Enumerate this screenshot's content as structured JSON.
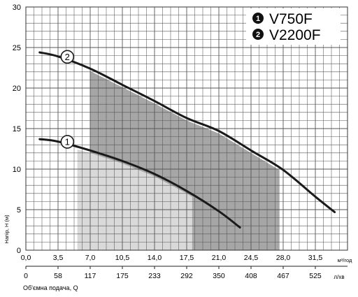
{
  "chart_data": {
    "type": "line",
    "title": "",
    "xlabel": "Об'ємна подача, Q",
    "xlabel_units_top": "м³/год",
    "xlabel_units_bottom": "л/хв",
    "ylabel": "Напір, Н (м)",
    "xlim": [
      0,
      35
    ],
    "ylim": [
      0,
      30
    ],
    "grid": true,
    "x_ticks_top": [
      "0,0",
      "3,5",
      "7,0",
      "10,5",
      "14,0",
      "17,5",
      "21,0",
      "24,5",
      "28,0",
      "31,5"
    ],
    "x_ticks_bottom": [
      "0",
      "58",
      "117",
      "175",
      "233",
      "292",
      "350",
      "408",
      "467",
      "525"
    ],
    "y_ticks": [
      "0",
      "5",
      "10",
      "15",
      "20",
      "25",
      "30"
    ],
    "legend": [
      {
        "marker": "1",
        "label": "V750F"
      },
      {
        "marker": "2",
        "label": "V2200F"
      }
    ],
    "series": [
      {
        "marker": "1",
        "x": [
          1.5,
          3.5,
          7.0,
          10.5,
          14.0,
          17.5,
          21.0,
          23.3
        ],
        "y": [
          13.7,
          13.4,
          12.3,
          11.0,
          9.4,
          7.3,
          4.8,
          2.8
        ],
        "region_x": [
          5.6,
          18.1
        ]
      },
      {
        "marker": "2",
        "x": [
          1.5,
          3.5,
          7.0,
          10.5,
          14.0,
          17.5,
          21.0,
          24.5,
          28.0,
          31.5,
          33.6
        ],
        "y": [
          24.4,
          23.9,
          22.4,
          20.4,
          18.4,
          16.3,
          14.7,
          12.3,
          9.9,
          6.6,
          4.7
        ],
        "region_x": [
          7.0,
          27.6
        ]
      }
    ],
    "colors": {
      "curve": "#1a1a1a",
      "grid": "#555555",
      "region_light": "#d9d9d9",
      "region_dark": "#a6a6a6",
      "text": "#000000"
    }
  }
}
